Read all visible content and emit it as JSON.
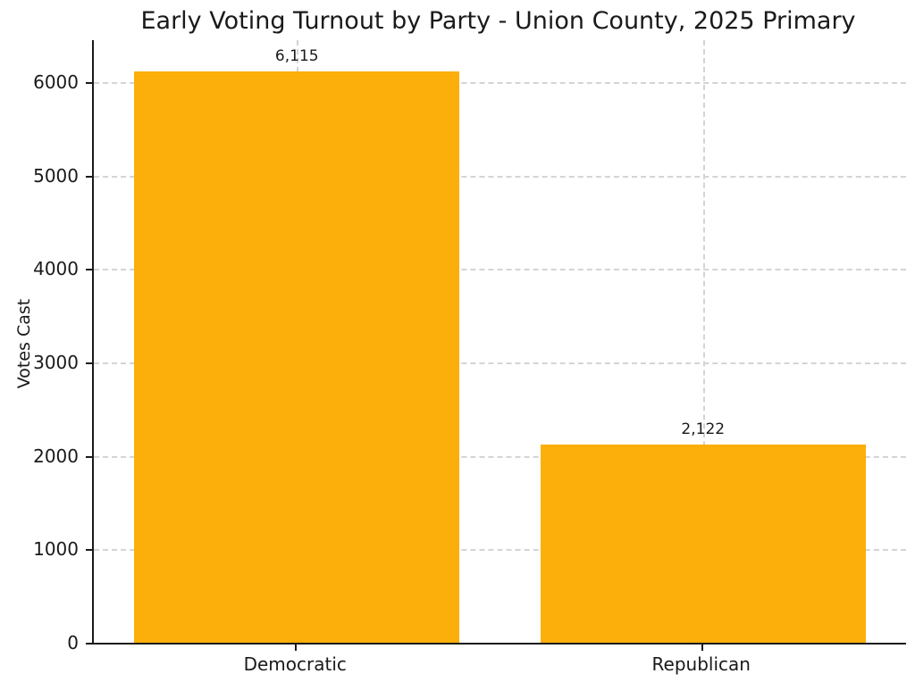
{
  "chart_data": {
    "type": "bar",
    "title": "Early Voting Turnout by Party - Union County, 2025 Primary",
    "ylabel": "Votes Cast",
    "xlabel": "",
    "categories": [
      "Democratic",
      "Republican"
    ],
    "values": [
      6115,
      2122
    ],
    "value_labels": [
      "6,115",
      "2,122"
    ],
    "yticks": [
      0,
      1000,
      2000,
      3000,
      4000,
      5000,
      6000
    ],
    "ytick_labels": [
      "0",
      "1000",
      "2000",
      "3000",
      "4000",
      "5000",
      "6000"
    ],
    "ylim": [
      0,
      6450
    ],
    "bar_color": "#FCAE0A",
    "grid": "dashed",
    "grid_color": "#d4d4d4",
    "legend": "none"
  }
}
